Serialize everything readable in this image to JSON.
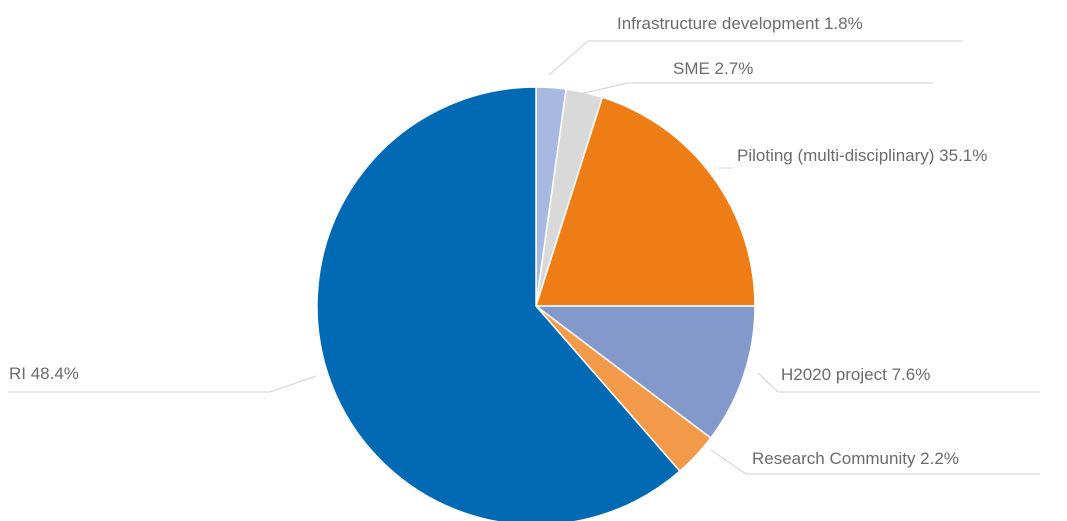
{
  "chart_data": {
    "type": "pie",
    "title": "",
    "unit": "%",
    "slices": [
      {
        "label": "Infrastructure development",
        "value": 1.8,
        "display": "Infrastructure development 1.8%",
        "color": "#a9b8e0"
      },
      {
        "label": "SME",
        "value": 2.7,
        "display": "SME 2.7%",
        "color": "#d9d9d9"
      },
      {
        "label": "Piloting (multi-disciplinary)",
        "value": 35.1,
        "display": "Piloting (multi-disciplinary) 35.1%",
        "color": "#ee7d16"
      },
      {
        "label": "H2020 project",
        "value": 7.6,
        "display": "H2020 project 7.6%",
        "color": "#8399cc"
      },
      {
        "label": "Research Community",
        "value": 2.2,
        "display": "Research Community 2.2%",
        "color": "#f29a49"
      },
      {
        "label": "RI",
        "value": 48.4,
        "display": "RI 48.4%",
        "color": "#0069b4"
      }
    ],
    "start_angle": "12 o'clock",
    "direction": "clockwise",
    "legend": "none (labels beside slices)"
  }
}
